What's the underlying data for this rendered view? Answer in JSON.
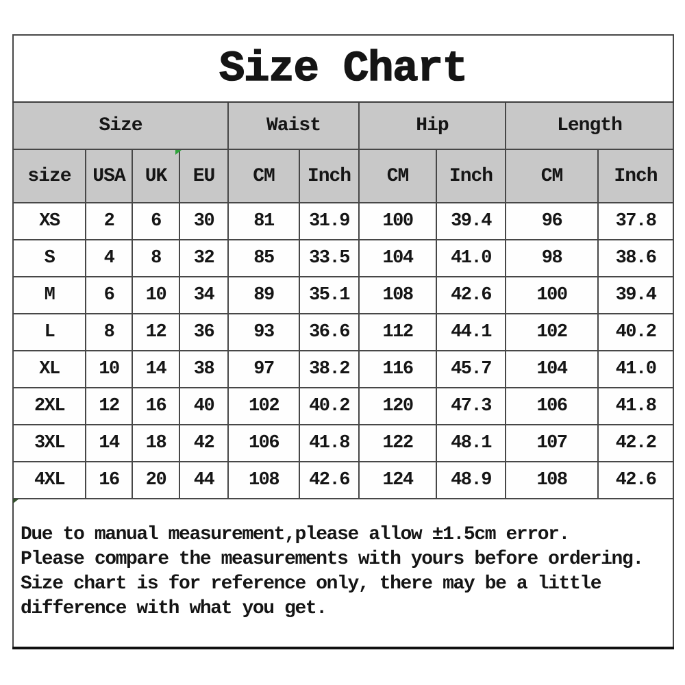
{
  "title": "Size Chart",
  "chart_data": {
    "type": "table",
    "title": "Size Chart",
    "column_groups": [
      {
        "label": "Size",
        "span": 4
      },
      {
        "label": "Waist",
        "span": 2
      },
      {
        "label": "Hip",
        "span": 2
      },
      {
        "label": "Length",
        "span": 2
      }
    ],
    "columns": [
      "size",
      "USA",
      "UK",
      "EU",
      "CM",
      "Inch",
      "CM",
      "Inch",
      "CM",
      "Inch"
    ],
    "rows": [
      [
        "XS",
        "2",
        "6",
        "30",
        "81",
        "31.9",
        "100",
        "39.4",
        "96",
        "37.8"
      ],
      [
        "S",
        "4",
        "8",
        "32",
        "85",
        "33.5",
        "104",
        "41.0",
        "98",
        "38.6"
      ],
      [
        "M",
        "6",
        "10",
        "34",
        "89",
        "35.1",
        "108",
        "42.6",
        "100",
        "39.4"
      ],
      [
        "L",
        "8",
        "12",
        "36",
        "93",
        "36.6",
        "112",
        "44.1",
        "102",
        "40.2"
      ],
      [
        "XL",
        "10",
        "14",
        "38",
        "97",
        "38.2",
        "116",
        "45.7",
        "104",
        "41.0"
      ],
      [
        "2XL",
        "12",
        "16",
        "40",
        "102",
        "40.2",
        "120",
        "47.3",
        "106",
        "41.8"
      ],
      [
        "3XL",
        "14",
        "18",
        "42",
        "106",
        "41.8",
        "122",
        "48.1",
        "107",
        "42.2"
      ],
      [
        "4XL",
        "16",
        "20",
        "44",
        "108",
        "42.6",
        "124",
        "48.9",
        "108",
        "42.6"
      ]
    ]
  },
  "note_lines": [
    "Due to manual measurement,please allow ±1.5cm error.",
    "Please compare the measurements with yours before ordering.",
    "Size chart is for reference only, there may be a little",
    "difference with what you get."
  ],
  "colors": {
    "header_bg": "#c8c8c8",
    "grid_border": "#474747",
    "outer_border": "#101010",
    "text": "#151515",
    "artifact_green_bright": "#2fa33b",
    "artifact_green_dark": "#35502e"
  }
}
